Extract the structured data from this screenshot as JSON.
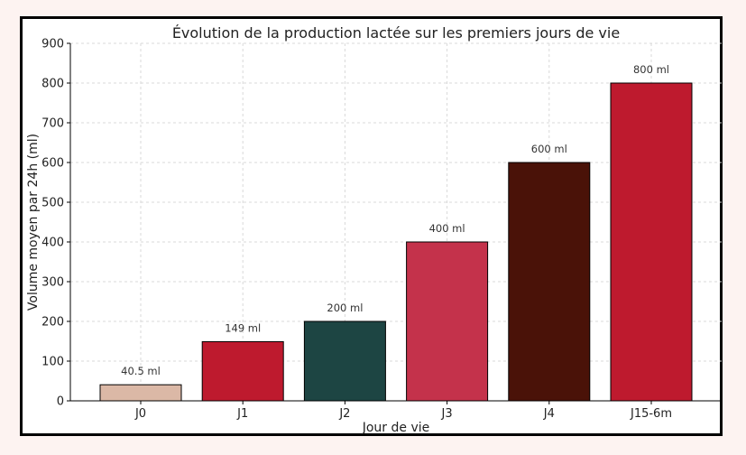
{
  "chart_data": {
    "type": "bar",
    "title": "Évolution de la production lactée sur les premiers jours de vie",
    "xlabel": "Jour de vie",
    "ylabel": "Volume moyen par 24h (ml)",
    "categories": [
      "J0",
      "J1",
      "J2",
      "J3",
      "J4",
      "J15-6m"
    ],
    "values": [
      40.5,
      149,
      200,
      400,
      600,
      800
    ],
    "data_labels": [
      "40.5 ml",
      "149 ml",
      "200 ml",
      "400 ml",
      "600 ml",
      "800 ml"
    ],
    "colors": [
      "#dbb8a6",
      "#be1a2e",
      "#1d4543",
      "#c4324b",
      "#4a1208",
      "#be1a2e"
    ],
    "ylim": [
      0,
      900
    ],
    "yticks": [
      0,
      100,
      200,
      300,
      400,
      500,
      600,
      700,
      800,
      900
    ],
    "grid": true,
    "legend": "none"
  }
}
